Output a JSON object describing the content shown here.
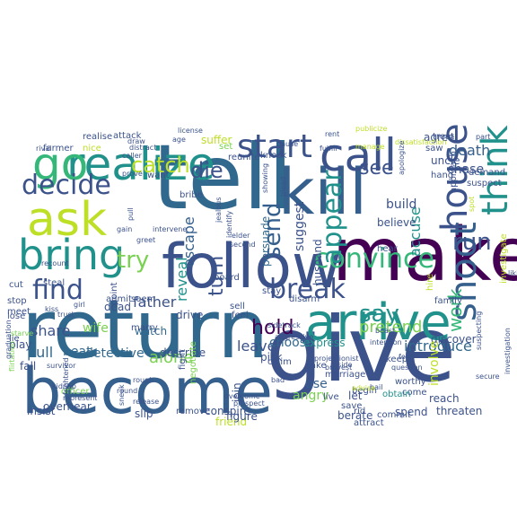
{
  "palette": {
    "dark_purple": "#440154",
    "indigo": "#3b528b",
    "blue": "#31688e",
    "slate": "#355f8d",
    "teal": "#21918c",
    "green": "#35b779",
    "lime": "#7ad151",
    "yellow": "#bddf26",
    "bright_yellow": "#fde725"
  },
  "words": [
    {
      "text": "tell",
      "color": "#31688e"
    },
    {
      "text": "give",
      "color": "#3b528b"
    },
    {
      "text": "return",
      "color": "#31688e"
    },
    {
      "text": "make",
      "color": "#440154"
    },
    {
      "text": "kill",
      "color": "#355f8d"
    },
    {
      "text": "become",
      "color": "#355f8d"
    },
    {
      "text": "follow",
      "color": "#3b528b"
    },
    {
      "text": "realize",
      "color": "#21918c"
    },
    {
      "text": "go",
      "color": "#35b779"
    },
    {
      "text": "ask",
      "color": "#bddf26"
    },
    {
      "text": "call",
      "color": "#3b528b"
    },
    {
      "text": "start",
      "color": "#3b528b"
    },
    {
      "text": "arrive",
      "color": "#21918c"
    },
    {
      "text": "bring",
      "color": "#21918c"
    },
    {
      "text": "shoot",
      "color": "#355f8d"
    },
    {
      "text": "house",
      "color": "#3b528b"
    },
    {
      "text": "think",
      "color": "#21918c"
    },
    {
      "text": "decide",
      "color": "#3b528b"
    },
    {
      "text": "break",
      "color": "#3b528b"
    },
    {
      "text": "find",
      "color": "#3b528b"
    },
    {
      "text": "convince",
      "color": "#35b779"
    },
    {
      "text": "appear",
      "color": "#21918c"
    },
    {
      "text": "send",
      "color": "#355f8d"
    },
    {
      "text": "run",
      "color": "#3b528b"
    },
    {
      "text": "try",
      "color": "#7ad151"
    },
    {
      "text": "catch",
      "color": "#bddf26"
    },
    {
      "text": "die",
      "color": "#3b528b"
    },
    {
      "text": "say",
      "color": "#21918c"
    },
    {
      "text": "hold",
      "color": "#440154"
    },
    {
      "text": "turn",
      "color": "#3b528b"
    },
    {
      "text": "see",
      "color": "#3b528b"
    },
    {
      "text": "work",
      "color": "#35b779"
    },
    {
      "text": "pretend",
      "color": "#7ad151"
    },
    {
      "text": "introduce",
      "color": "#31688e"
    },
    {
      "text": "share",
      "color": "#3b528b"
    },
    {
      "text": "father",
      "color": "#3b528b"
    },
    {
      "text": "pull",
      "color": "#31688e"
    },
    {
      "text": "beat",
      "color": "#31688e"
    },
    {
      "text": "detective",
      "color": "#31688e"
    },
    {
      "text": "alone",
      "color": "#7ad151"
    },
    {
      "text": "leave",
      "color": "#3b528b"
    },
    {
      "text": "suggest",
      "color": "#3b528b"
    },
    {
      "text": "accuse",
      "color": "#21918c"
    },
    {
      "text": "escape",
      "color": "#355f8d"
    },
    {
      "text": "reveal",
      "color": "#21918c"
    },
    {
      "text": "persuade",
      "color": "#31688e"
    },
    {
      "text": "build",
      "color": "#3b528b"
    },
    {
      "text": "believe",
      "color": "#3b528b"
    },
    {
      "text": "choose",
      "color": "#31688e"
    },
    {
      "text": "angry",
      "color": "#7ad151"
    },
    {
      "text": "use",
      "color": "#355f8d"
    },
    {
      "text": "let",
      "color": "#3b528b"
    },
    {
      "text": "discover",
      "color": "#3b528b"
    },
    {
      "text": "death",
      "color": "#355f8d"
    },
    {
      "text": "chase",
      "color": "#3b528b"
    },
    {
      "text": "uncle",
      "color": "#3b528b"
    },
    {
      "text": "hang",
      "color": "#3b528b"
    },
    {
      "text": "approach",
      "color": "#3b528b"
    },
    {
      "text": "suspect",
      "color": "#3b528b"
    },
    {
      "text": "demand",
      "color": "#3b528b"
    },
    {
      "text": "fall",
      "color": "#3b528b"
    },
    {
      "text": "wife",
      "color": "#7ad151"
    },
    {
      "text": "watch",
      "color": "#31688e"
    },
    {
      "text": "officer",
      "color": "#7ad151"
    },
    {
      "text": "slip",
      "color": "#3b528b"
    },
    {
      "text": "overhear",
      "color": "#3b528b"
    },
    {
      "text": "remove",
      "color": "#3b528b"
    },
    {
      "text": "conspire",
      "color": "#3b528b"
    },
    {
      "text": "insist",
      "color": "#3b528b"
    },
    {
      "text": "friend",
      "color": "#bddf26"
    },
    {
      "text": "figure",
      "color": "#3b528b"
    },
    {
      "text": "join",
      "color": "#3b528b"
    },
    {
      "text": "save",
      "color": "#3b528b"
    },
    {
      "text": "berate",
      "color": "#3b528b"
    },
    {
      "text": "attract",
      "color": "#3b528b"
    },
    {
      "text": "commit",
      "color": "#3b528b"
    },
    {
      "text": "threaten",
      "color": "#3b528b"
    },
    {
      "text": "spend",
      "color": "#3b528b"
    },
    {
      "text": "reach",
      "color": "#3b528b"
    },
    {
      "text": "come",
      "color": "#3b528b"
    },
    {
      "text": "obtain",
      "color": "#21918c"
    },
    {
      "text": "live",
      "color": "#3b528b"
    },
    {
      "text": "rid",
      "color": "#3b528b"
    },
    {
      "text": "involve",
      "color": "#bddf26"
    },
    {
      "text": "worthy",
      "color": "#3b528b"
    },
    {
      "text": "keep",
      "color": "#3b528b"
    },
    {
      "text": "begin",
      "color": "#3b528b"
    },
    {
      "text": "marriage",
      "color": "#3b528b"
    },
    {
      "text": "take",
      "color": "#3b528b"
    },
    {
      "text": "express",
      "color": "#21918c"
    },
    {
      "text": "claim",
      "color": "#3b528b"
    },
    {
      "text": "describe",
      "color": "#3b528b"
    },
    {
      "text": "sell",
      "color": "#3b528b"
    },
    {
      "text": "feel",
      "color": "#3b528b"
    },
    {
      "text": "marry",
      "color": "#3b528b"
    },
    {
      "text": "drive",
      "color": "#3b528b"
    },
    {
      "text": "point",
      "color": "#3b528b"
    },
    {
      "text": "dead",
      "color": "#3b528b"
    },
    {
      "text": "seem",
      "color": "#3b528b"
    },
    {
      "text": "pick",
      "color": "#3b528b"
    },
    {
      "text": "stay",
      "color": "#3b528b"
    },
    {
      "text": "disarm",
      "color": "#3b528b"
    },
    {
      "text": "play",
      "color": "#3b528b"
    },
    {
      "text": "lie",
      "color": "#3b528b"
    },
    {
      "text": "lose",
      "color": "#3b528b"
    },
    {
      "text": "meet",
      "color": "#3b528b"
    },
    {
      "text": "stop",
      "color": "#3b528b"
    },
    {
      "text": "cut",
      "color": "#3b528b"
    },
    {
      "text": "steal",
      "color": "#3b528b"
    },
    {
      "text": "admit",
      "color": "#3b528b"
    },
    {
      "text": "realise",
      "color": "#3b528b"
    },
    {
      "text": "attack",
      "color": "#3b528b"
    },
    {
      "text": "suffer",
      "color": "#bddf26"
    },
    {
      "text": "knock",
      "color": "#3b528b"
    },
    {
      "text": "reunite",
      "color": "#3b528b"
    },
    {
      "text": "set",
      "color": "#7ad151"
    },
    {
      "text": "husband",
      "color": "#3b528b"
    },
    {
      "text": "hear",
      "color": "#3b528b"
    },
    {
      "text": "agree",
      "color": "#3b528b"
    },
    {
      "text": "treat",
      "color": "#3b528b"
    },
    {
      "text": "saw",
      "color": "#3b528b"
    },
    {
      "text": "hire",
      "color": "#bddf26"
    },
    {
      "text": "family",
      "color": "#3b528b"
    },
    {
      "text": "board",
      "color": "#3b528b"
    },
    {
      "text": "want",
      "color": "#3b528b"
    },
    {
      "text": "bribe",
      "color": "#3b528b"
    },
    {
      "text": "fight",
      "color": "#3b528b"
    },
    {
      "text": "farmer",
      "color": "#3b528b"
    },
    {
      "text": "nice",
      "color": "#bddf26"
    },
    {
      "text": "negotiate",
      "color": "#7ad151"
    },
    {
      "text": "license",
      "color": "#3b528b"
    },
    {
      "text": "age",
      "color": "#3b528b"
    },
    {
      "text": "fulfill",
      "color": "#3b528b"
    },
    {
      "text": "rent",
      "color": "#3b528b"
    },
    {
      "text": "pause",
      "color": "#3b528b"
    },
    {
      "text": "jealous",
      "color": "#3b528b"
    },
    {
      "text": "identify",
      "color": "#3b528b"
    },
    {
      "text": "showing",
      "color": "#3b528b"
    },
    {
      "text": "plead",
      "color": "#3b528b"
    },
    {
      "text": "second",
      "color": "#3b528b"
    },
    {
      "text": "elder",
      "color": "#3b528b"
    },
    {
      "text": "publicize",
      "color": "#bddf26"
    },
    {
      "text": "manage",
      "color": "#bddf26"
    },
    {
      "text": "dissatisfaction",
      "color": "#bddf26"
    },
    {
      "text": "apologize",
      "color": "#3b528b"
    },
    {
      "text": "investigate",
      "color": "#bddf26"
    },
    {
      "text": "spot",
      "color": "#bddf26"
    },
    {
      "text": "liking",
      "color": "#3b528b"
    },
    {
      "text": "part",
      "color": "#3b528b"
    },
    {
      "text": "boast",
      "color": "#3b528b"
    },
    {
      "text": "intention",
      "color": "#3b528b"
    },
    {
      "text": "question",
      "color": "#3b528b"
    },
    {
      "text": "feed",
      "color": "#3b528b"
    },
    {
      "text": "suspecting",
      "color": "#3b528b"
    },
    {
      "text": "investigation",
      "color": "#3b528b"
    },
    {
      "text": "secure",
      "color": "#3b528b"
    },
    {
      "text": "hail",
      "color": "#3b528b"
    },
    {
      "text": "bravest",
      "color": "#3b528b"
    },
    {
      "text": "projectionist",
      "color": "#3b528b"
    },
    {
      "text": "sidetrack",
      "color": "#3b528b"
    },
    {
      "text": "aggressive",
      "color": "#3b528b"
    },
    {
      "text": "reside",
      "color": "#3b528b"
    },
    {
      "text": "advise",
      "color": "#bddf26"
    },
    {
      "text": "prospect",
      "color": "#3b528b"
    },
    {
      "text": "bad",
      "color": "#3b528b"
    },
    {
      "text": "overcome",
      "color": "#3b528b"
    },
    {
      "text": "rough",
      "color": "#3b528b"
    },
    {
      "text": "sneak",
      "color": "#3b528b"
    },
    {
      "text": "release",
      "color": "#3b528b"
    },
    {
      "text": "round",
      "color": "#3b528b"
    },
    {
      "text": "represent",
      "color": "#3b528b"
    },
    {
      "text": "frightened",
      "color": "#3b528b"
    },
    {
      "text": "kidnap",
      "color": "#3b528b"
    },
    {
      "text": "survivor",
      "color": "#3b528b"
    },
    {
      "text": "flirtation",
      "color": "#7ad151"
    },
    {
      "text": "graduation",
      "color": "#3b528b"
    },
    {
      "text": "starve",
      "color": "#7ad151"
    },
    {
      "text": "kiss",
      "color": "#3b528b"
    },
    {
      "text": "trust",
      "color": "#3b528b"
    },
    {
      "text": "girl",
      "color": "#3b528b"
    },
    {
      "text": "recount",
      "color": "#3b528b"
    },
    {
      "text": "rival",
      "color": "#3b528b"
    },
    {
      "text": "distract",
      "color": "#3b528b"
    },
    {
      "text": "draw",
      "color": "#3b528b"
    },
    {
      "text": "caller",
      "color": "#3b528b"
    },
    {
      "text": "pull",
      "color": "#3b528b"
    },
    {
      "text": "prove",
      "color": "#3b528b"
    },
    {
      "text": "intervene",
      "color": "#3b528b"
    },
    {
      "text": "gain",
      "color": "#3b528b"
    },
    {
      "text": "greet",
      "color": "#3b528b"
    }
  ]
}
